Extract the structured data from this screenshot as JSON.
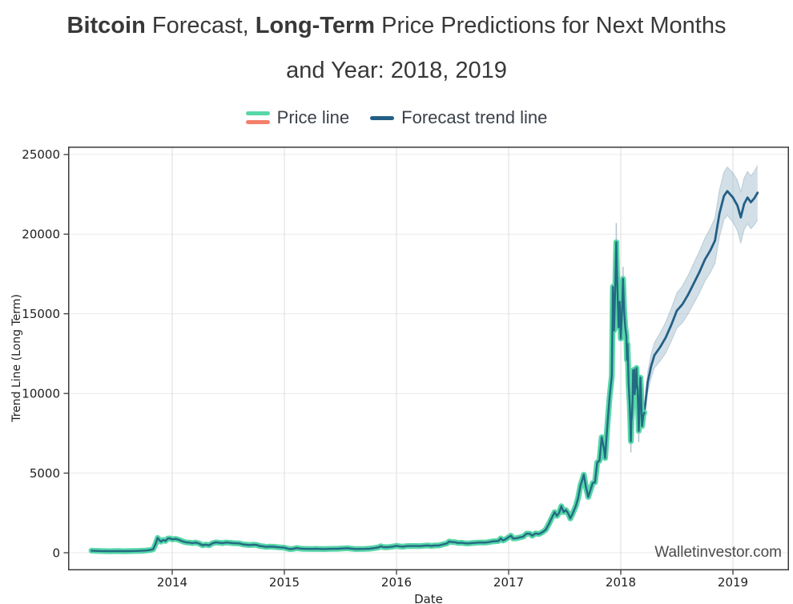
{
  "title": {
    "seg1": "Bitcoin",
    "seg2": " Forecast, ",
    "seg3": "Long-Term",
    "seg4": " Price Predictions for Next Months",
    "line2": "and Year: 2018, 2019"
  },
  "legend": {
    "price_label": "Price line",
    "forecast_label": "Forecast trend line"
  },
  "watermark": "Walletinvestor.com",
  "colors": {
    "title_text": "#383838",
    "legend_text": "#3a4149",
    "price_glow": "#57d7a8",
    "price_core": "#236a84",
    "price_salmon": "#f5806b",
    "forecast_line": "#235f86",
    "band_fill": "#9cb7c9",
    "band_edge": "#93aec2",
    "wick": "#b5c4cf",
    "grid_h": "#e9e9e9",
    "grid_v": "#dcdcdc",
    "spine": "#3a3a3a",
    "tick_label": "#1f1f1f",
    "watermark_text": "#4b4b4b"
  },
  "chart_data": {
    "type": "line",
    "title": "Bitcoin Forecast, Long-Term Price Predictions for Next Months and Year: 2018, 2019",
    "xlabel": "Date",
    "ylabel": "Trend Line (Long Term)",
    "xticks": [
      2014,
      2015,
      2016,
      2017,
      2018,
      2019
    ],
    "yticks": [
      0,
      5000,
      10000,
      15000,
      20000,
      25000
    ],
    "xlim": [
      2013.07,
      2019.5
    ],
    "ylim": [
      -1100,
      25500
    ],
    "grid": true,
    "legend_position": "top-center",
    "series": [
      {
        "name": "Price line",
        "type": "line-glow",
        "points": [
          [
            2013.28,
            130
          ],
          [
            2013.32,
            115
          ],
          [
            2013.36,
            105
          ],
          [
            2013.4,
            100
          ],
          [
            2013.44,
            97
          ],
          [
            2013.48,
            100
          ],
          [
            2013.52,
            104
          ],
          [
            2013.56,
            98
          ],
          [
            2013.6,
            100
          ],
          [
            2013.64,
            108
          ],
          [
            2013.68,
            112
          ],
          [
            2013.72,
            122
          ],
          [
            2013.76,
            135
          ],
          [
            2013.8,
            165
          ],
          [
            2013.83,
            220
          ],
          [
            2013.85,
            520
          ],
          [
            2013.87,
            930
          ],
          [
            2013.89,
            760
          ],
          [
            2013.9,
            700
          ],
          [
            2013.92,
            800
          ],
          [
            2013.94,
            740
          ],
          [
            2013.96,
            890
          ],
          [
            2013.98,
            900
          ],
          [
            2014.0,
            840
          ],
          [
            2014.03,
            870
          ],
          [
            2014.06,
            810
          ],
          [
            2014.09,
            720
          ],
          [
            2014.12,
            660
          ],
          [
            2014.15,
            640
          ],
          [
            2014.18,
            610
          ],
          [
            2014.21,
            640
          ],
          [
            2014.24,
            580
          ],
          [
            2014.27,
            470
          ],
          [
            2014.3,
            510
          ],
          [
            2014.33,
            470
          ],
          [
            2014.36,
            600
          ],
          [
            2014.39,
            650
          ],
          [
            2014.42,
            625
          ],
          [
            2014.45,
            605
          ],
          [
            2014.48,
            645
          ],
          [
            2014.51,
            625
          ],
          [
            2014.54,
            605
          ],
          [
            2014.57,
            595
          ],
          [
            2014.6,
            585
          ],
          [
            2014.63,
            525
          ],
          [
            2014.66,
            505
          ],
          [
            2014.69,
            485
          ],
          [
            2014.72,
            505
          ],
          [
            2014.75,
            495
          ],
          [
            2014.78,
            425
          ],
          [
            2014.81,
            395
          ],
          [
            2014.84,
            365
          ],
          [
            2014.87,
            385
          ],
          [
            2014.9,
            375
          ],
          [
            2014.93,
            355
          ],
          [
            2014.96,
            335
          ],
          [
            2015.0,
            315
          ],
          [
            2015.03,
            255
          ],
          [
            2015.05,
            225
          ],
          [
            2015.08,
            245
          ],
          [
            2015.11,
            295
          ],
          [
            2015.14,
            260
          ],
          [
            2015.17,
            248
          ],
          [
            2015.2,
            242
          ],
          [
            2015.24,
            238
          ],
          [
            2015.28,
            244
          ],
          [
            2015.32,
            236
          ],
          [
            2015.36,
            232
          ],
          [
            2015.4,
            240
          ],
          [
            2015.44,
            246
          ],
          [
            2015.48,
            252
          ],
          [
            2015.52,
            268
          ],
          [
            2015.56,
            285
          ],
          [
            2015.6,
            258
          ],
          [
            2015.64,
            232
          ],
          [
            2015.68,
            237
          ],
          [
            2015.72,
            242
          ],
          [
            2015.76,
            255
          ],
          [
            2015.8,
            292
          ],
          [
            2015.84,
            335
          ],
          [
            2015.86,
            405
          ],
          [
            2015.88,
            355
          ],
          [
            2015.91,
            345
          ],
          [
            2015.94,
            362
          ],
          [
            2015.97,
            392
          ],
          [
            2016.0,
            432
          ],
          [
            2016.03,
            398
          ],
          [
            2016.06,
            382
          ],
          [
            2016.09,
            415
          ],
          [
            2016.13,
            422
          ],
          [
            2016.17,
            420
          ],
          [
            2016.21,
            418
          ],
          [
            2016.25,
            442
          ],
          [
            2016.28,
            458
          ],
          [
            2016.31,
            428
          ],
          [
            2016.34,
            452
          ],
          [
            2016.38,
            458
          ],
          [
            2016.42,
            535
          ],
          [
            2016.45,
            585
          ],
          [
            2016.47,
            705
          ],
          [
            2016.49,
            672
          ],
          [
            2016.52,
            662
          ],
          [
            2016.55,
            612
          ],
          [
            2016.58,
            622
          ],
          [
            2016.61,
            592
          ],
          [
            2016.64,
            582
          ],
          [
            2016.67,
            607
          ],
          [
            2016.7,
            618
          ],
          [
            2016.73,
            638
          ],
          [
            2016.76,
            642
          ],
          [
            2016.79,
            637
          ],
          [
            2016.82,
            662
          ],
          [
            2016.85,
            702
          ],
          [
            2016.88,
            722
          ],
          [
            2016.91,
            738
          ],
          [
            2016.93,
            900
          ],
          [
            2016.95,
            770
          ],
          [
            2016.97,
            835
          ],
          [
            2017.0,
            975
          ],
          [
            2017.02,
            1070
          ],
          [
            2017.04,
            895
          ],
          [
            2017.07,
            910
          ],
          [
            2017.1,
            965
          ],
          [
            2017.13,
            1010
          ],
          [
            2017.16,
            1200
          ],
          [
            2017.19,
            1190
          ],
          [
            2017.21,
            1070
          ],
          [
            2017.24,
            1210
          ],
          [
            2017.27,
            1170
          ],
          [
            2017.3,
            1280
          ],
          [
            2017.33,
            1440
          ],
          [
            2017.36,
            1820
          ],
          [
            2017.38,
            2120
          ],
          [
            2017.41,
            2550
          ],
          [
            2017.43,
            2320
          ],
          [
            2017.45,
            2500
          ],
          [
            2017.47,
            2920
          ],
          [
            2017.49,
            2550
          ],
          [
            2017.51,
            2680
          ],
          [
            2017.53,
            2480
          ],
          [
            2017.55,
            2150
          ],
          [
            2017.57,
            2450
          ],
          [
            2017.6,
            2950
          ],
          [
            2017.62,
            3450
          ],
          [
            2017.64,
            4200
          ],
          [
            2017.66,
            4650
          ],
          [
            2017.67,
            4900
          ],
          [
            2017.69,
            4100
          ],
          [
            2017.71,
            3500
          ],
          [
            2017.73,
            3950
          ],
          [
            2017.75,
            4380
          ],
          [
            2017.77,
            4420
          ],
          [
            2017.79,
            5680
          ],
          [
            2017.81,
            5780
          ],
          [
            2017.83,
            7250
          ],
          [
            2017.85,
            6550
          ],
          [
            2017.86,
            5950
          ],
          [
            2017.88,
            7950
          ],
          [
            2017.9,
            9750
          ],
          [
            2017.92,
            11100
          ],
          [
            2017.93,
            16700
          ],
          [
            2017.94,
            13950
          ],
          [
            2017.95,
            16450
          ],
          [
            2017.96,
            19500
          ],
          [
            2017.965,
            17800
          ],
          [
            2017.97,
            16700
          ],
          [
            2017.98,
            14150
          ],
          [
            2017.99,
            15750
          ],
          [
            2018.0,
            13450
          ],
          [
            2018.01,
            14950
          ],
          [
            2018.02,
            17200
          ],
          [
            2018.03,
            15150
          ],
          [
            2018.04,
            14150
          ],
          [
            2018.05,
            13600
          ],
          [
            2018.055,
            12100
          ],
          [
            2018.06,
            13100
          ],
          [
            2018.07,
            10600
          ],
          [
            2018.08,
            9300
          ],
          [
            2018.085,
            8300
          ],
          [
            2018.09,
            7000
          ],
          [
            2018.095,
            8300
          ],
          [
            2018.1,
            8700
          ],
          [
            2018.105,
            9500
          ],
          [
            2018.11,
            11450
          ],
          [
            2018.115,
            10050
          ],
          [
            2018.12,
            11500
          ],
          [
            2018.125,
            9950
          ],
          [
            2018.13,
            11050
          ],
          [
            2018.135,
            10350
          ],
          [
            2018.14,
            11600
          ],
          [
            2018.145,
            10550
          ],
          [
            2018.15,
            10250
          ],
          [
            2018.155,
            9050
          ],
          [
            2018.16,
            7650
          ],
          [
            2018.165,
            8450
          ],
          [
            2018.17,
            9850
          ],
          [
            2018.175,
            11000
          ],
          [
            2018.18,
            10250
          ],
          [
            2018.185,
            8850
          ],
          [
            2018.19,
            7950
          ],
          [
            2018.2,
            8600
          ],
          [
            2018.21,
            8800
          ]
        ]
      },
      {
        "name": "Forecast trend line",
        "type": "line-with-band",
        "points_format": [
          "year",
          "value",
          "band_lower",
          "band_upper"
        ],
        "points": [
          [
            2018.21,
            8800,
            8450,
            9150
          ],
          [
            2018.24,
            10700,
            10060,
            11340
          ],
          [
            2018.27,
            11700,
            10960,
            12440
          ],
          [
            2018.3,
            12400,
            11610,
            13190
          ],
          [
            2018.35,
            12900,
            12020,
            13780
          ],
          [
            2018.4,
            13500,
            12540,
            14460
          ],
          [
            2018.45,
            14300,
            13270,
            15330
          ],
          [
            2018.5,
            15200,
            14100,
            16300
          ],
          [
            2018.55,
            15600,
            14450,
            16750
          ],
          [
            2018.6,
            16200,
            14990,
            17410
          ],
          [
            2018.65,
            16900,
            15640,
            18160
          ],
          [
            2018.7,
            17600,
            16290,
            18910
          ],
          [
            2018.75,
            18400,
            17050,
            19750
          ],
          [
            2018.8,
            19000,
            17610,
            20390
          ],
          [
            2018.84,
            19600,
            18170,
            21030
          ],
          [
            2018.88,
            21300,
            19840,
            22760
          ],
          [
            2018.92,
            22400,
            20910,
            23890
          ],
          [
            2018.95,
            22700,
            21190,
            24210
          ],
          [
            2019.0,
            22300,
            20750,
            23850
          ],
          [
            2019.04,
            21800,
            20220,
            23380
          ],
          [
            2019.07,
            21050,
            19450,
            22650
          ],
          [
            2019.1,
            21900,
            20280,
            23520
          ],
          [
            2019.13,
            22300,
            20660,
            23940
          ],
          [
            2019.16,
            22000,
            20340,
            23660
          ],
          [
            2019.19,
            22250,
            20570,
            23930
          ],
          [
            2019.22,
            22600,
            20900,
            24300
          ]
        ]
      }
    ],
    "wicks": [
      [
        2017.96,
        19500,
        20700
      ],
      [
        2018.02,
        17250,
        17950
      ],
      [
        2018.09,
        7000,
        6300
      ],
      [
        2018.16,
        7650,
        6950
      ]
    ]
  }
}
